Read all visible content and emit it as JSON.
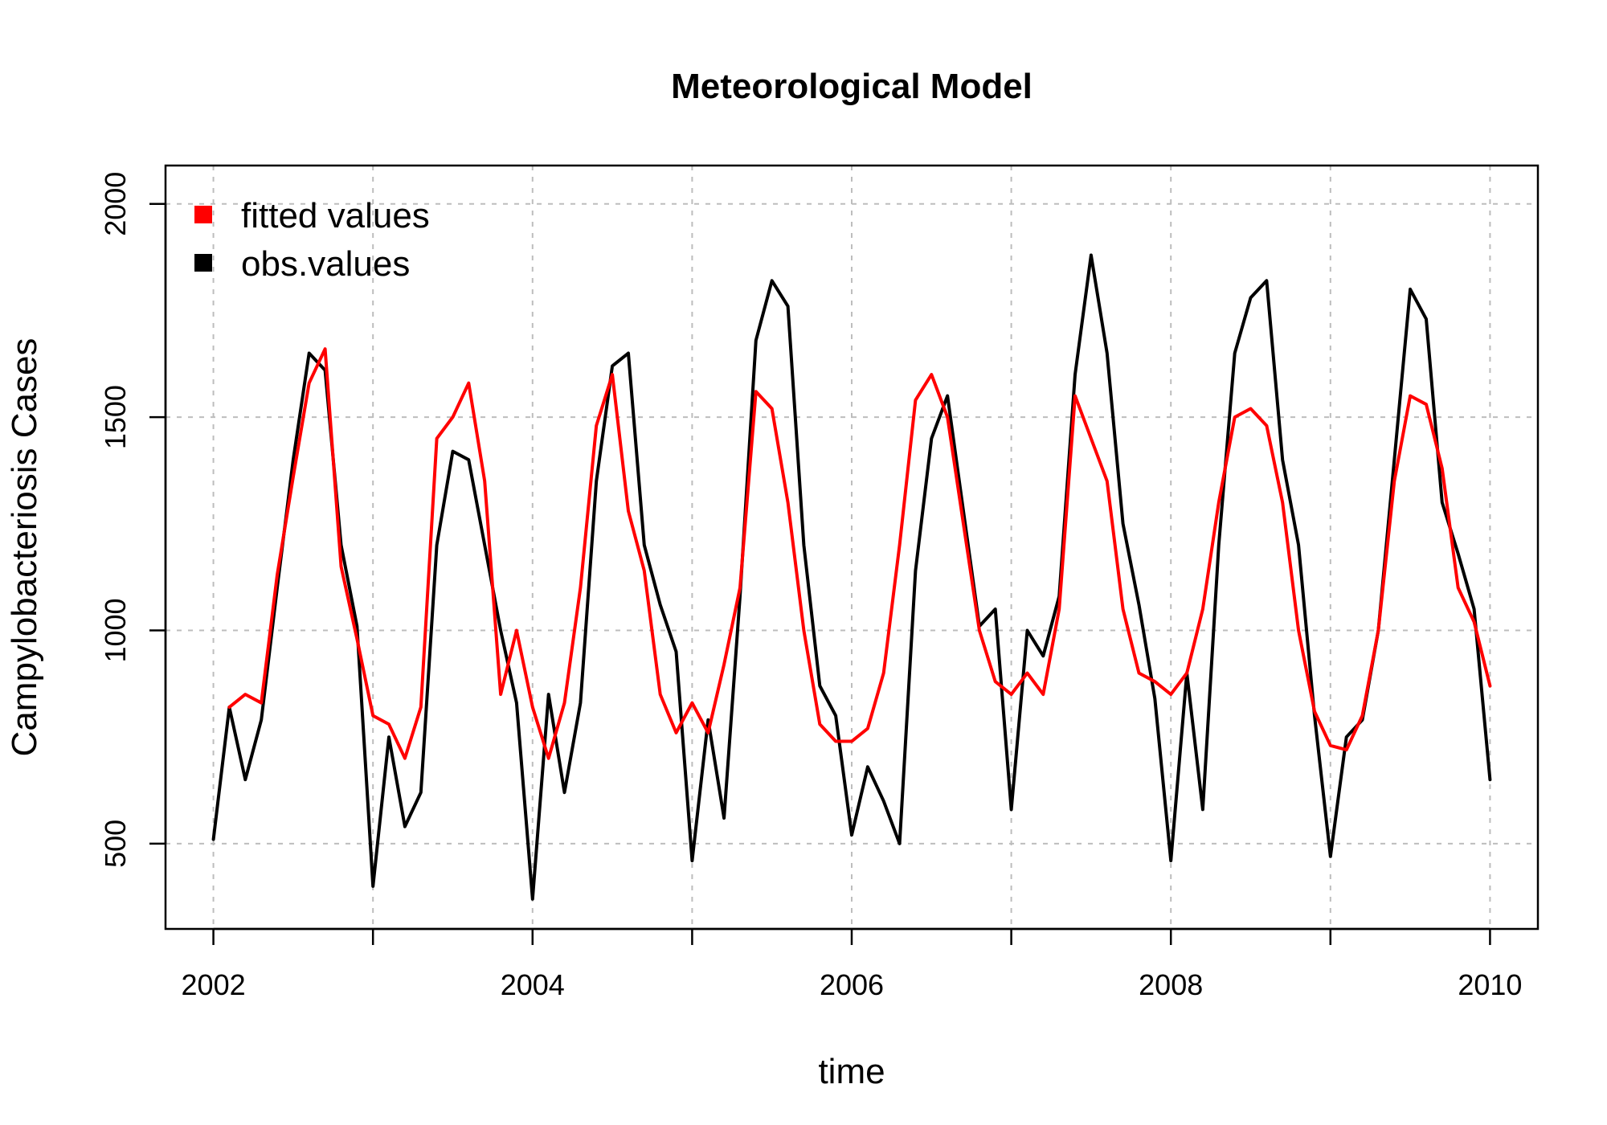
{
  "chart_data": {
    "type": "line",
    "title": "Meteorological Model",
    "xlabel": "time",
    "ylabel": "Campylobacteriosis Cases",
    "xlim": [
      2001.7,
      2010.3
    ],
    "ylim": [
      300,
      2090
    ],
    "x_ticks": [
      2002,
      2003,
      2004,
      2005,
      2006,
      2007,
      2008,
      2009,
      2010
    ],
    "x_tick_labels": [
      "2002",
      "",
      "2004",
      "",
      "2006",
      "",
      "2008",
      "",
      "2010"
    ],
    "y_ticks": [
      500,
      1000,
      1500,
      2000
    ],
    "y_tick_labels": [
      "500",
      "1000",
      "1500",
      "2000"
    ],
    "grid": true,
    "legend_position": "top-left",
    "x": [
      2002.0,
      2002.1,
      2002.2,
      2002.3,
      2002.4,
      2002.5,
      2002.6,
      2002.7,
      2002.8,
      2002.9,
      2003.0,
      2003.1,
      2003.2,
      2003.3,
      2003.4,
      2003.5,
      2003.6,
      2003.7,
      2003.8,
      2003.9,
      2004.0,
      2004.1,
      2004.2,
      2004.3,
      2004.4,
      2004.5,
      2004.6,
      2004.7,
      2004.8,
      2004.9,
      2005.0,
      2005.1,
      2005.2,
      2005.3,
      2005.4,
      2005.5,
      2005.6,
      2005.7,
      2005.8,
      2005.9,
      2006.0,
      2006.1,
      2006.2,
      2006.3,
      2006.4,
      2006.5,
      2006.6,
      2006.7,
      2006.8,
      2006.9,
      2007.0,
      2007.1,
      2007.2,
      2007.3,
      2007.4,
      2007.5,
      2007.6,
      2007.7,
      2007.8,
      2007.9,
      2008.0,
      2008.1,
      2008.2,
      2008.3,
      2008.4,
      2008.5,
      2008.6,
      2008.7,
      2008.8,
      2008.9,
      2009.0,
      2009.1,
      2009.2,
      2009.3,
      2009.4,
      2009.5,
      2009.6,
      2009.7,
      2009.8,
      2009.9,
      2010.0
    ],
    "series": [
      {
        "name": "fitted values",
        "color": "#ff0000",
        "values": [
          null,
          820,
          850,
          830,
          1130,
          1360,
          1580,
          1660,
          1150,
          980,
          800,
          780,
          700,
          820,
          1450,
          1500,
          1580,
          1350,
          850,
          1000,
          820,
          700,
          830,
          1100,
          1480,
          1600,
          1280,
          1140,
          850,
          760,
          830,
          760,
          920,
          1100,
          1560,
          1520,
          1300,
          1000,
          780,
          740,
          740,
          770,
          900,
          1200,
          1540,
          1600,
          1500,
          1250,
          1000,
          880,
          850,
          900,
          850,
          1050,
          1550,
          1450,
          1350,
          1050,
          900,
          880,
          850,
          900,
          1050,
          1300,
          1500,
          1520,
          1480,
          1300,
          1000,
          810,
          730,
          720,
          800,
          1000,
          1350,
          1550,
          1530,
          1380,
          1100,
          1020,
          870
        ]
      },
      {
        "name": "obs.values",
        "color": "#000000",
        "values": [
          510,
          820,
          650,
          790,
          1100,
          1400,
          1650,
          1610,
          1200,
          1010,
          400,
          750,
          540,
          620,
          1200,
          1420,
          1400,
          1200,
          1000,
          830,
          370,
          850,
          620,
          830,
          1350,
          1620,
          1650,
          1200,
          1060,
          950,
          460,
          790,
          560,
          1080,
          1680,
          1820,
          1760,
          1200,
          870,
          800,
          520,
          680,
          600,
          500,
          1140,
          1450,
          1550,
          1280,
          1010,
          1050,
          580,
          1000,
          940,
          1080,
          1600,
          1880,
          1650,
          1250,
          1060,
          840,
          460,
          900,
          580,
          1200,
          1650,
          1780,
          1820,
          1400,
          1200,
          800,
          470,
          750,
          790,
          1000,
          1400,
          1800,
          1730,
          1300,
          1180,
          1050,
          650
        ]
      }
    ]
  }
}
